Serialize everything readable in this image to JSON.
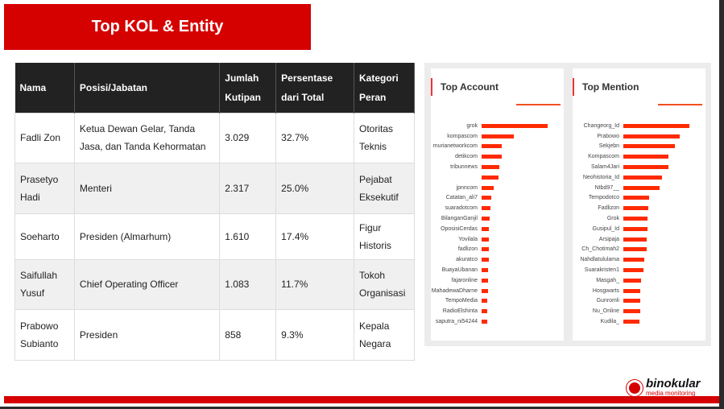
{
  "title": "Top KOL & Entity",
  "table": {
    "headers": [
      "Nama",
      "Posisi/Jabatan",
      "Jumlah Kutipan",
      "Persentase dari Total",
      "Kategori Peran"
    ],
    "rows": [
      [
        "Fadli Zon",
        "Ketua Dewan Gelar, Tanda Jasa, dan Tanda Kehormatan",
        "3.029",
        "32.7%",
        "Otoritas Teknis"
      ],
      [
        "Prasetyo Hadi",
        "Menteri",
        "2.317",
        "25.0%",
        "Pejabat Eksekutif"
      ],
      [
        "Soeharto",
        "Presiden (Almarhum)",
        "1.610",
        "17.4%",
        "Figur Historis"
      ],
      [
        "Saifullah Yusuf",
        "Chief Operating Officer",
        "1.083",
        "11.7%",
        "Tokoh Organisasi"
      ],
      [
        "Prabowo Subianto",
        "Presiden",
        "858",
        "9.3%",
        "Kepala Negara"
      ]
    ]
  },
  "chart_data": [
    {
      "type": "bar",
      "title": "Top Account",
      "categories": [
        "grok",
        "kompascom",
        "murianetworkcom",
        "detikcom",
        "tribunnews",
        "",
        "jpnncom",
        "Catatan_ali7",
        "suaradotcom",
        "BilanganGanjil",
        "OposisiCerdas",
        "Yovilala",
        "fadlizon",
        "akuratco",
        "BuayaUbanan",
        "fajaronline",
        "MahadewaDharne",
        "TempoMedia",
        "RadioElshinta",
        "saputra_ni54244"
      ],
      "values": [
        100,
        49,
        31,
        30,
        27,
        25,
        18,
        15,
        14,
        12,
        11,
        11,
        11,
        11,
        10,
        10,
        10,
        9,
        9,
        9
      ]
    },
    {
      "type": "bar",
      "title": "Top Mention",
      "categories": [
        "Changeorg_Id",
        "Prabowo",
        "Sekjebn",
        "Kompascom",
        "Salam4Jari",
        "Neohistoria_Id",
        "Ntbd97__",
        "Tempodotco",
        "Fadlizon",
        "Grok",
        "Gusipul_Id",
        "Arsipaja",
        "Ch_Chotimah2",
        "Nahdlatululama",
        "Suarakristen1",
        "Masgah_",
        "Hosgwarts",
        "Gunromli",
        "Nu_Online",
        "Kudila_"
      ],
      "values": [
        100,
        85,
        78,
        68,
        68,
        58,
        55,
        39,
        38,
        37,
        36,
        35,
        35,
        32,
        30,
        27,
        26,
        25,
        25,
        24
      ]
    }
  ],
  "logo": {
    "name": "binokular",
    "tagline": "media monitoring"
  }
}
